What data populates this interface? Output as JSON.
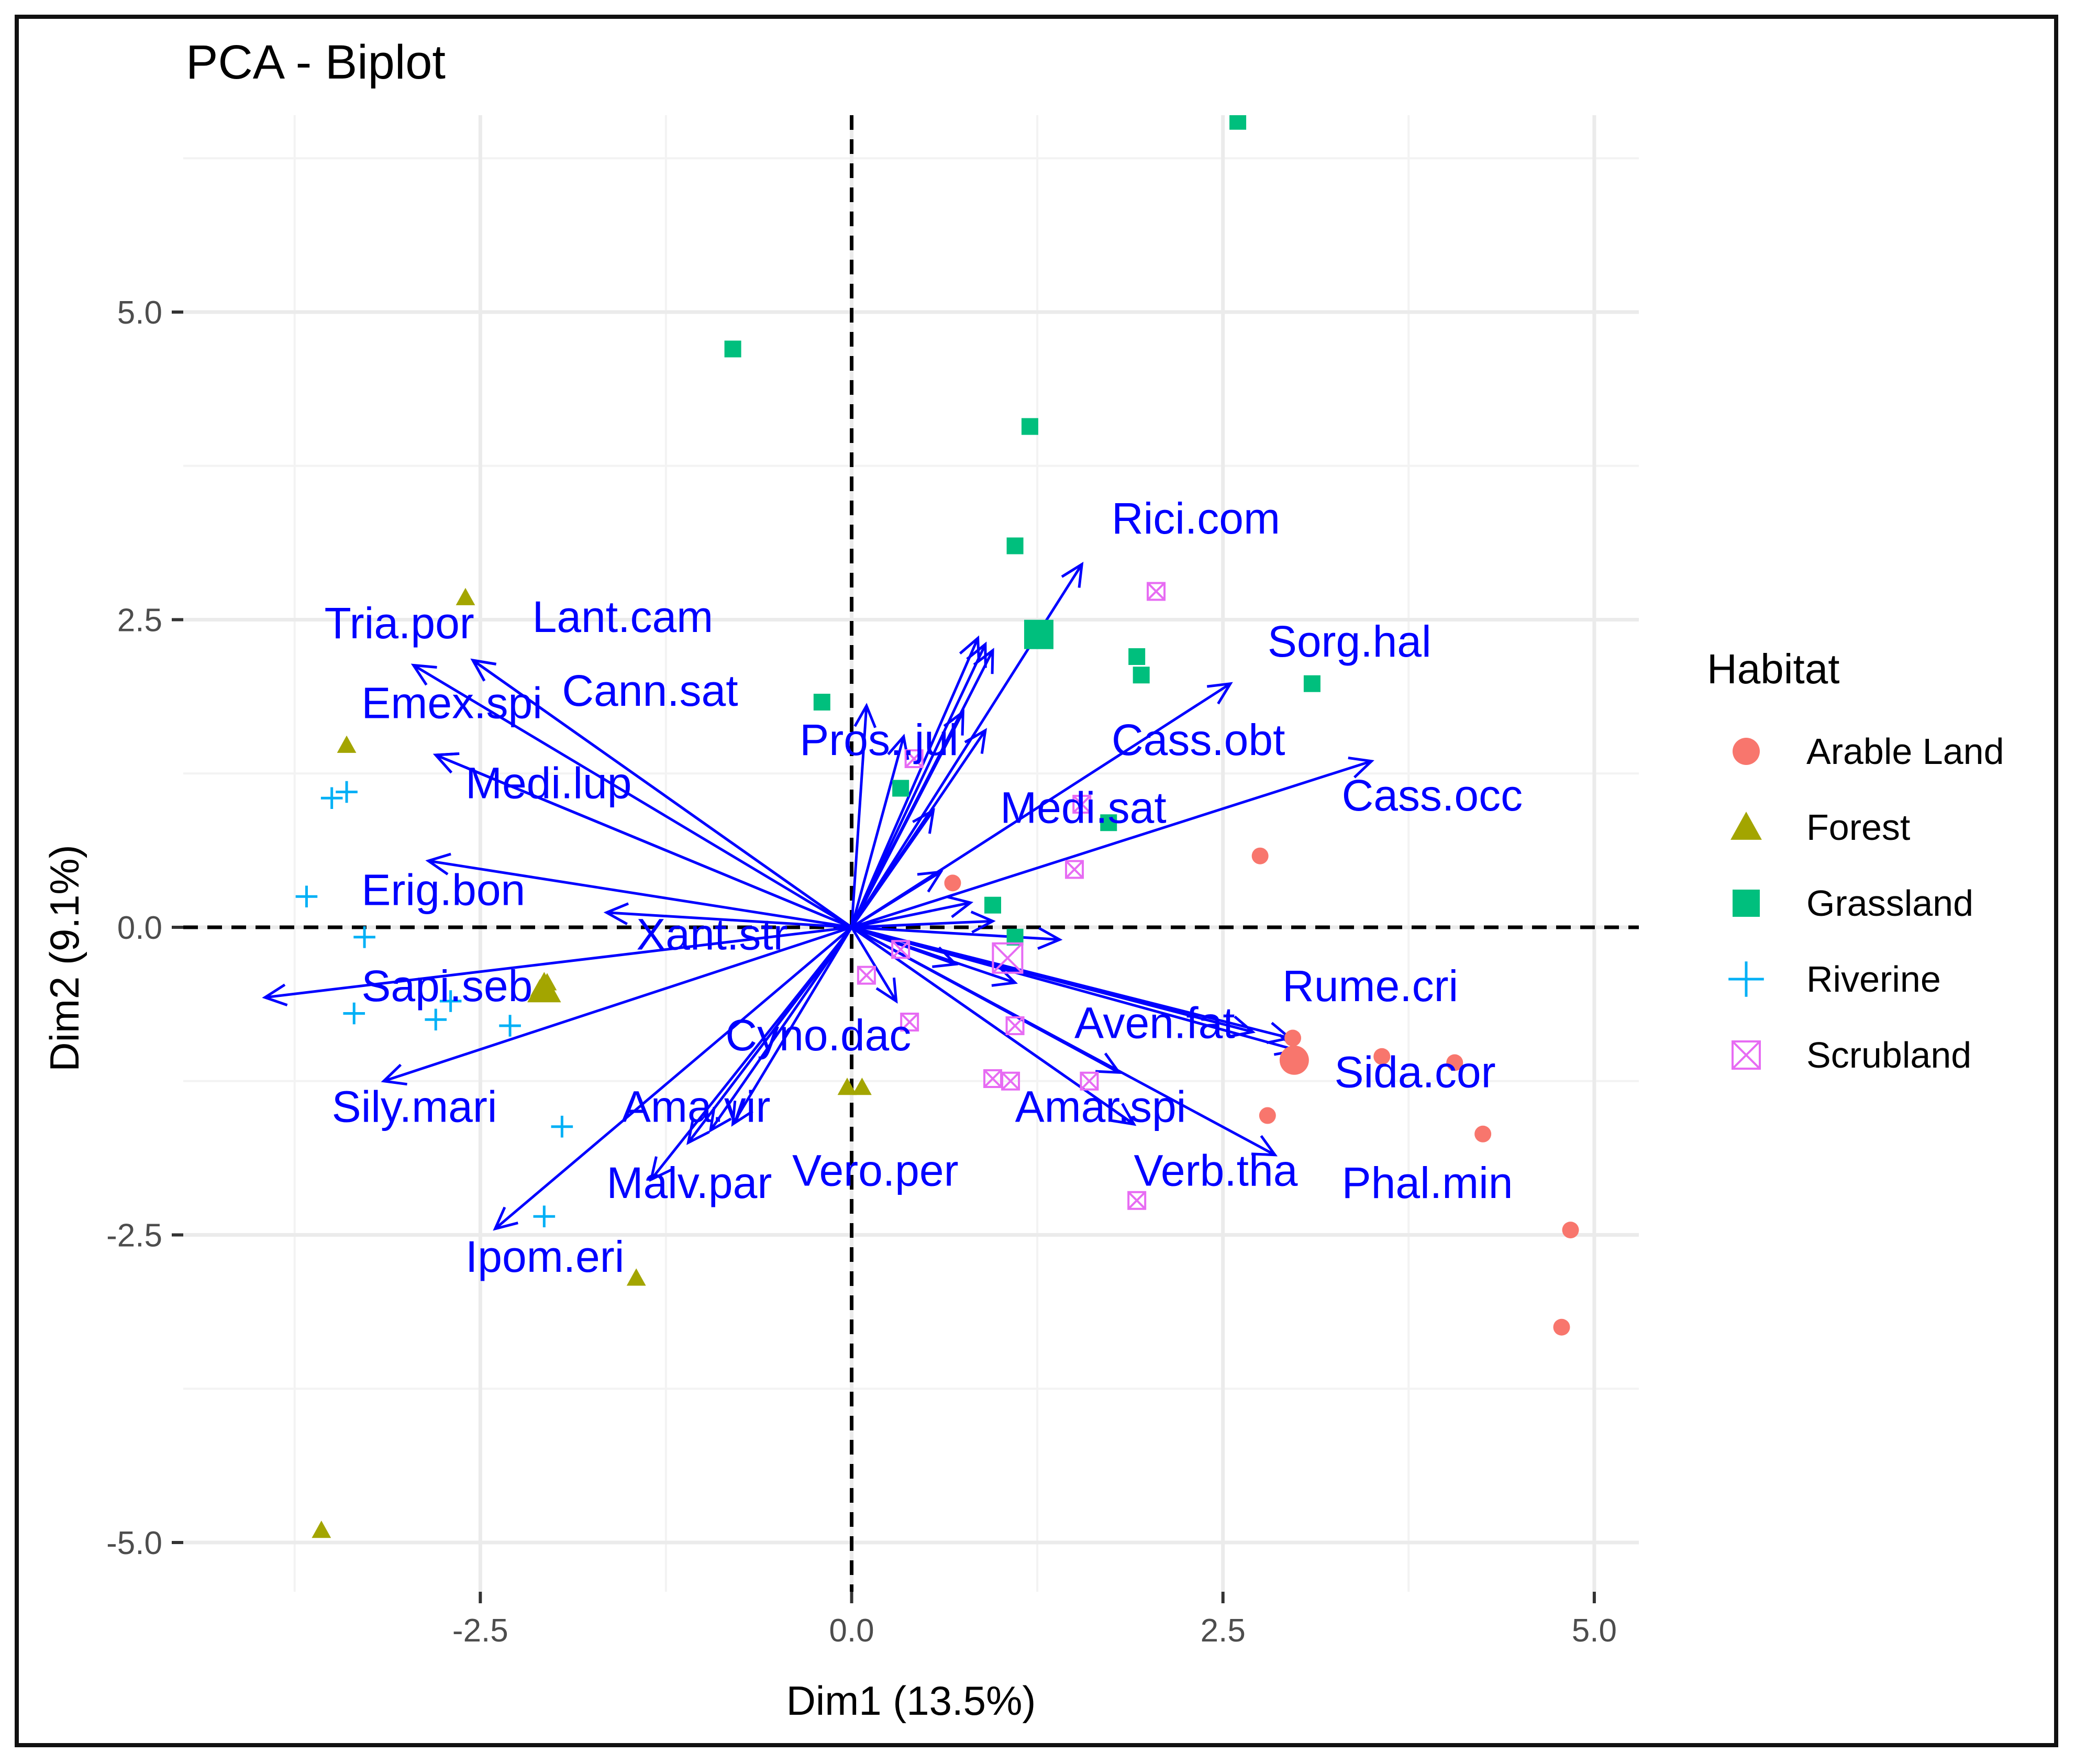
{
  "chart_data": {
    "type": "scatter",
    "title": "PCA - Biplot",
    "xlabel": "Dim1 (13.5%)",
    "ylabel": "Dim2 (9.1%)",
    "xlim": [
      -4.5,
      5.3
    ],
    "ylim": [
      -5.4,
      6.6
    ],
    "xticks": [
      -2.5,
      0.0,
      2.5,
      5.0
    ],
    "xtick_labels": [
      "-2.5",
      "0.0",
      "2.5",
      "5.0"
    ],
    "yticks": [
      -5.0,
      -2.5,
      0.0,
      2.5,
      5.0
    ],
    "ytick_labels": [
      "-5.0",
      "-2.5",
      "0.0",
      "2.5",
      "5.0"
    ],
    "grid": true,
    "reference_lines": {
      "x": 0,
      "y": 0,
      "style": "dashed"
    },
    "legend": {
      "title": "Habitat",
      "placement": "right",
      "entries": [
        {
          "name": "Arable Land",
          "color": "#F8766D",
          "shape": "circle"
        },
        {
          "name": "Forest",
          "color": "#A3A500",
          "shape": "triangle"
        },
        {
          "name": "Grassland",
          "color": "#00BF7D",
          "shape": "square"
        },
        {
          "name": "Riverine",
          "color": "#00B0F6",
          "shape": "plus"
        },
        {
          "name": "Scrubland",
          "color": "#E76BF3",
          "shape": "square-x"
        }
      ]
    },
    "arrow_color": "#0000FF",
    "series": [
      {
        "name": "Arable Land",
        "points": [
          [
            2.75,
            0.58
          ],
          [
            2.97,
            -0.9
          ],
          [
            2.8,
            -1.53
          ],
          [
            3.57,
            -1.05
          ],
          [
            4.06,
            -1.1
          ],
          [
            4.25,
            -1.68
          ],
          [
            4.84,
            -2.46
          ],
          [
            4.78,
            -3.25
          ],
          [
            0.68,
            0.36
          ]
        ],
        "centroid": [
          2.98,
          -1.08
        ]
      },
      {
        "name": "Forest",
        "points": [
          [
            -2.6,
            2.68
          ],
          [
            -3.4,
            1.48
          ],
          [
            -2.05,
            -0.45
          ],
          [
            -2.1,
            -0.5
          ],
          [
            -0.03,
            -1.3
          ],
          [
            0.07,
            -1.3
          ],
          [
            -1.45,
            -2.85
          ],
          [
            -3.57,
            -4.9
          ]
        ],
        "centroid": [
          -2.07,
          -0.5
        ]
      },
      {
        "name": "Grassland",
        "points": [
          [
            -0.8,
            4.7
          ],
          [
            1.2,
            4.07
          ],
          [
            1.1,
            3.1
          ],
          [
            2.6,
            6.55
          ],
          [
            1.92,
            2.2
          ],
          [
            1.95,
            2.05
          ],
          [
            3.1,
            1.98
          ],
          [
            -0.2,
            1.83
          ],
          [
            0.33,
            1.13
          ],
          [
            1.73,
            0.85
          ],
          [
            0.95,
            0.18
          ],
          [
            1.1,
            -0.08
          ]
        ],
        "centroid": [
          1.26,
          2.38
        ]
      },
      {
        "name": "Riverine",
        "points": [
          [
            -3.5,
            1.05
          ],
          [
            -3.4,
            1.1
          ],
          [
            -3.67,
            0.25
          ],
          [
            -3.28,
            -0.08
          ],
          [
            -2.7,
            -0.6
          ],
          [
            -2.8,
            -0.75
          ],
          [
            -2.3,
            -0.8
          ],
          [
            -3.35,
            -0.7
          ],
          [
            -1.95,
            -1.62
          ],
          [
            -2.07,
            -2.35
          ]
        ]
      },
      {
        "name": "Scrubland",
        "points": [
          [
            2.05,
            2.73
          ],
          [
            0.42,
            1.37
          ],
          [
            1.55,
            1.0
          ],
          [
            1.5,
            0.47
          ],
          [
            0.1,
            -0.39
          ],
          [
            0.39,
            -0.77
          ],
          [
            0.95,
            -1.23
          ],
          [
            1.07,
            -1.25
          ],
          [
            1.6,
            -1.25
          ],
          [
            1.92,
            -2.22
          ],
          [
            1.1,
            -0.8
          ],
          [
            0.33,
            -0.18
          ]
        ],
        "centroid": [
          1.05,
          -0.25
        ]
      }
    ],
    "variables": [
      {
        "name": "Rici.com",
        "x": 1.55,
        "y": 2.95
      },
      {
        "name": "Sorg.hal",
        "x": 2.55,
        "y": 1.98
      },
      {
        "name": "Cass.obt",
        "x": 0.9,
        "y": 1.6
      },
      {
        "name": "Cass.occ",
        "x": 3.5,
        "y": 1.35
      },
      {
        "name": "Medi.sat",
        "x": 0.6,
        "y": 0.45
      },
      {
        "name": "Pros..jul",
        "x": 0.1,
        "y": 1.8
      },
      {
        "name": "Tria.por",
        "x": -2.95,
        "y": 2.13
      },
      {
        "name": "Lant.cam",
        "x": -2.55,
        "y": 2.17
      },
      {
        "name": "Cann.sat",
        "x": -2.55,
        "y": 2.17
      },
      {
        "name": "Emex.spi",
        "x": -2.8,
        "y": 1.4
      },
      {
        "name": "Medi.lup",
        "x": -2.8,
        "y": 1.4
      },
      {
        "name": "Erig.bon",
        "x": -2.85,
        "y": 0.54
      },
      {
        "name": "Xant.str",
        "x": -1.65,
        "y": 0.12
      },
      {
        "name": "Sapi.seb",
        "x": -3.95,
        "y": -0.57
      },
      {
        "name": "Sily.mari",
        "x": -3.15,
        "y": -1.25
      },
      {
        "name": "Cyno.dac",
        "x": -0.95,
        "y": -1.65
      },
      {
        "name": "Vero.per",
        "x": -0.8,
        "y": -1.6
      },
      {
        "name": "Ama.vir",
        "x": -1.1,
        "y": -1.75
      },
      {
        "name": "Malv.par",
        "x": -1.35,
        "y": -2.05
      },
      {
        "name": "Ipom.eri",
        "x": -2.4,
        "y": -2.45
      },
      {
        "name": "Rume.cri",
        "x": 2.95,
        "y": -0.9
      },
      {
        "name": "Sida.cor",
        "x": 3.0,
        "y": -1.0
      },
      {
        "name": "Aven.fat",
        "x": 1.8,
        "y": -1.18
      },
      {
        "name": "Amar.spi",
        "x": 1.9,
        "y": -1.6
      },
      {
        "name": "Verb.tha",
        "x": 1.9,
        "y": -1.6
      },
      {
        "name": "Phal.min",
        "x": 2.85,
        "y": -1.85
      },
      {
        "name": "",
        "x": 0.85,
        "y": 2.35
      },
      {
        "name": "",
        "x": 0.9,
        "y": 2.3
      },
      {
        "name": "",
        "x": 0.95,
        "y": 2.25
      },
      {
        "name": "",
        "x": 0.75,
        "y": 1.75
      },
      {
        "name": "",
        "x": 0.35,
        "y": 1.55
      },
      {
        "name": "",
        "x": 0.55,
        "y": 0.95
      },
      {
        "name": "",
        "x": 0.8,
        "y": 0.2
      },
      {
        "name": "",
        "x": 0.95,
        "y": 0.05
      },
      {
        "name": "",
        "x": 1.4,
        "y": -0.1
      },
      {
        "name": "",
        "x": 0.7,
        "y": -0.3
      },
      {
        "name": "",
        "x": 1.1,
        "y": -0.45
      },
      {
        "name": "",
        "x": 2.7,
        "y": -0.85
      },
      {
        "name": "",
        "x": 0.3,
        "y": -0.6
      }
    ],
    "label_positions_note": "",
    "labels": [
      {
        "text": "Rici.com",
        "x": 1.75,
        "y": 3.2
      },
      {
        "text": "Sorg.hal",
        "x": 2.8,
        "y": 2.2
      },
      {
        "text": "Cass.obt",
        "x": 1.75,
        "y": 1.4
      },
      {
        "text": "Cass.occ",
        "x": 3.3,
        "y": 0.95
      },
      {
        "text": "Medi.sat",
        "x": 1.0,
        "y": 0.85
      },
      {
        "text": "Pros..jul",
        "x": -0.35,
        "y": 1.4
      },
      {
        "text": "Tria.por",
        "x": -3.55,
        "y": 2.35
      },
      {
        "text": "Lant.cam",
        "x": -2.15,
        "y": 2.4
      },
      {
        "text": "Cann.sat",
        "x": -1.95,
        "y": 1.8
      },
      {
        "text": "Emex.spi",
        "x": -3.3,
        "y": 1.7
      },
      {
        "text": "Medi.lup",
        "x": -2.6,
        "y": 1.05
      },
      {
        "text": "Erig.bon",
        "x": -3.3,
        "y": 0.18
      },
      {
        "text": "Xant.str",
        "x": -1.45,
        "y": -0.18
      },
      {
        "text": "Sapi.seb",
        "x": -3.3,
        "y": -0.6
      },
      {
        "text": "Sily.mari",
        "x": -3.5,
        "y": -1.58
      },
      {
        "text": "Cyno.dac",
        "x": -0.85,
        "y": -1.0
      },
      {
        "text": "Ama.vir",
        "x": -1.55,
        "y": -1.58
      },
      {
        "text": "Vero.per",
        "x": -0.4,
        "y": -2.1
      },
      {
        "text": "Malv.par",
        "x": -1.65,
        "y": -2.2
      },
      {
        "text": "Ipom.eri",
        "x": -2.6,
        "y": -2.8
      },
      {
        "text": "Rume.cri",
        "x": 2.9,
        "y": -0.6
      },
      {
        "text": "Aven.fat",
        "x": 1.5,
        "y": -0.9
      },
      {
        "text": "Sida.cor",
        "x": 3.25,
        "y": -1.3
      },
      {
        "text": "Amar.spi",
        "x": 1.1,
        "y": -1.58
      },
      {
        "text": "Verb.tha",
        "x": 1.9,
        "y": -2.1
      },
      {
        "text": "Phal.min",
        "x": 3.3,
        "y": -2.2
      }
    ]
  }
}
